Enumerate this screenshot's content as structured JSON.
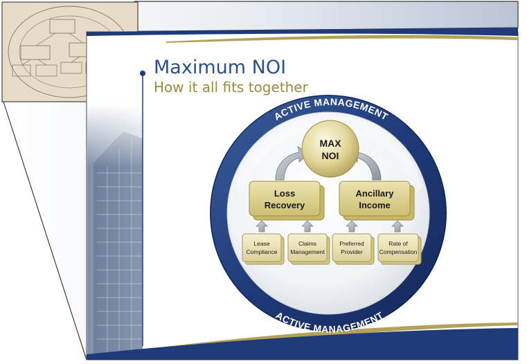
{
  "slide": {
    "title": "Maximum NOI",
    "subtitle": "How it all fits together"
  },
  "diagram": {
    "ring_label_top": "ACTIVE MANAGEMENT",
    "ring_label_bottom": "ACTIVE MANAGEMENT",
    "center": {
      "line1": "MAX",
      "line2": "NOI"
    },
    "left_group": {
      "line1": "Loss",
      "line2": "Recovery"
    },
    "right_group": {
      "line1": "Ancillary",
      "line2": "Income"
    },
    "leaves": [
      {
        "line1": "Lease",
        "line2": "Compliance"
      },
      {
        "line1": "Claims",
        "line2": "Management"
      },
      {
        "line1": "Preferred",
        "line2": "Provider"
      },
      {
        "line1": "Rate of",
        "line2": "Compensation"
      }
    ]
  },
  "colors": {
    "navy": "#1f3a78",
    "gold": "#b3a158",
    "box_gold": "#d8cc86"
  }
}
